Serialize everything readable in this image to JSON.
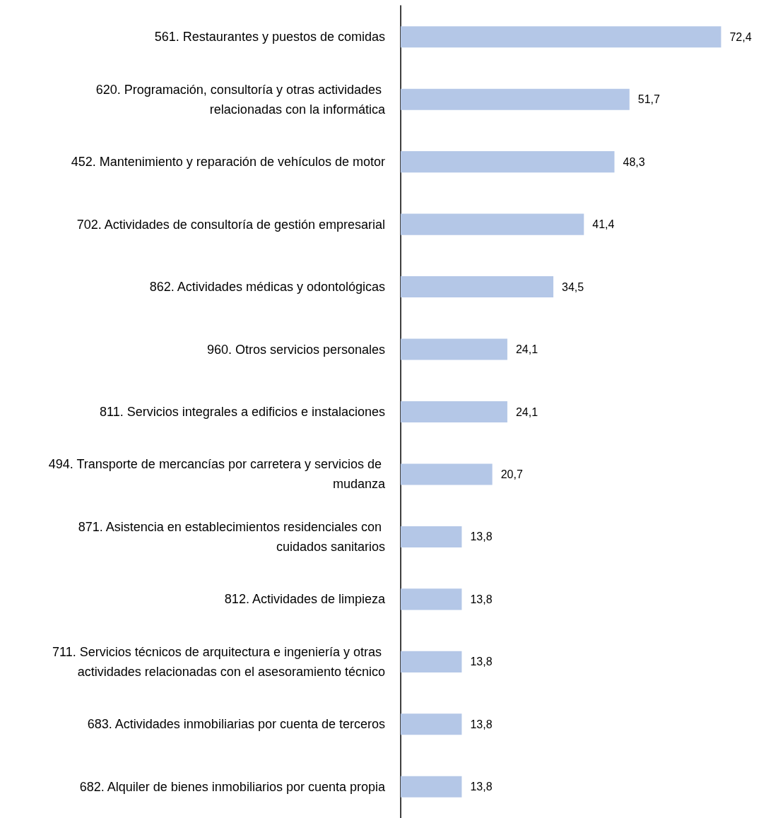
{
  "chart_data": {
    "type": "bar",
    "orientation": "horizontal",
    "categories": [
      "561. Restaurantes y puestos de comidas",
      "620. Programación, consultoría y otras actividades relacionadas con la informática",
      "452. Mantenimiento y reparación de vehículos de motor",
      "702. Actividades de consultoría de gestión empresarial",
      "862. Actividades médicas y odontológicas",
      "960. Otros servicios personales",
      "811. Servicios integrales a edificios e instalaciones",
      "494. Transporte de mercancías por carretera y servicios de mudanza",
      "871. Asistencia en establecimientos residenciales con cuidados sanitarios",
      "812. Actividades de limpieza",
      "711. Servicios técnicos de arquitectura e ingeniería y otras actividades relacionadas con el asesoramiento técnico",
      "683. Actividades inmobiliarias por cuenta de terceros",
      "682. Alquiler de bienes inmobiliarios por cuenta propia"
    ],
    "values": [
      72.4,
      51.7,
      48.3,
      41.4,
      34.5,
      24.1,
      24.1,
      20.7,
      13.8,
      13.8,
      13.8,
      13.8,
      13.8
    ],
    "value_labels": [
      "72,4",
      "51,7",
      "48,3",
      "41,4",
      "34,5",
      "24,1",
      "24,1",
      "20,7",
      "13,8",
      "13,8",
      "13,8",
      "13,8",
      "13,8"
    ],
    "color": "#b4c7e7"
  }
}
